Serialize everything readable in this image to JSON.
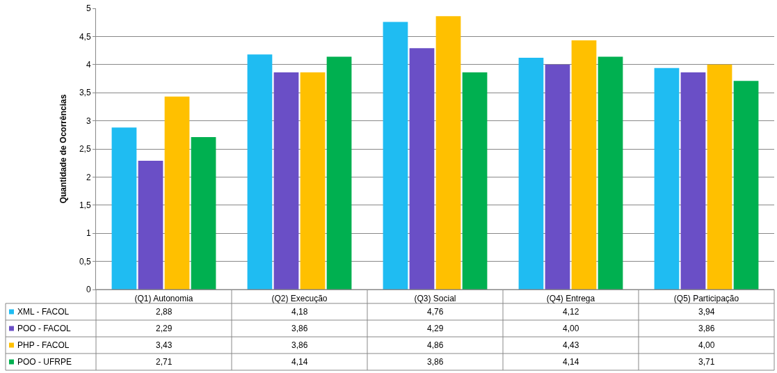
{
  "chart_data": {
    "type": "bar",
    "ylabel": "Quantidade de Ocorrências",
    "categories": [
      "(Q1) Autonomia",
      "(Q2) Execução",
      "(Q3) Social",
      "(Q4) Entrega",
      "(Q5) Participação"
    ],
    "series": [
      {
        "name": "XML - FACOL",
        "color": "#1fbcf2",
        "values": [
          2.88,
          4.18,
          4.76,
          4.12,
          3.94
        ],
        "value_labels": [
          "2,88",
          "4,18",
          "4,76",
          "4,12",
          "3,94"
        ]
      },
      {
        "name": "POO - FACOL",
        "color": "#6a4fc6",
        "values": [
          2.29,
          3.86,
          4.29,
          4.0,
          3.86
        ],
        "value_labels": [
          "2,29",
          "3,86",
          "4,29",
          "4,00",
          "3,86"
        ]
      },
      {
        "name": "PHP - FACOL",
        "color": "#ffc000",
        "values": [
          3.43,
          3.86,
          4.86,
          4.43,
          4.0
        ],
        "value_labels": [
          "3,43",
          "3,86",
          "4,86",
          "4,43",
          "4,00"
        ]
      },
      {
        "name": "POO - UFRPE",
        "color": "#00b050",
        "values": [
          2.71,
          4.14,
          3.86,
          4.14,
          3.71
        ],
        "value_labels": [
          "2,71",
          "4,14",
          "3,86",
          "4,14",
          "3,71"
        ]
      }
    ],
    "ylim": [
      0,
      5
    ],
    "yticks": [
      0,
      {
        "value": 0.5,
        "label": "0,5"
      },
      1,
      {
        "value": 1.5,
        "label": "1,5"
      },
      2,
      {
        "value": 2.5,
        "label": "2,5"
      },
      3,
      {
        "value": 3.5,
        "label": "3,5"
      },
      4,
      {
        "value": 4.5,
        "label": "4,5"
      },
      5
    ],
    "grid": "y",
    "legend": "bottom"
  }
}
